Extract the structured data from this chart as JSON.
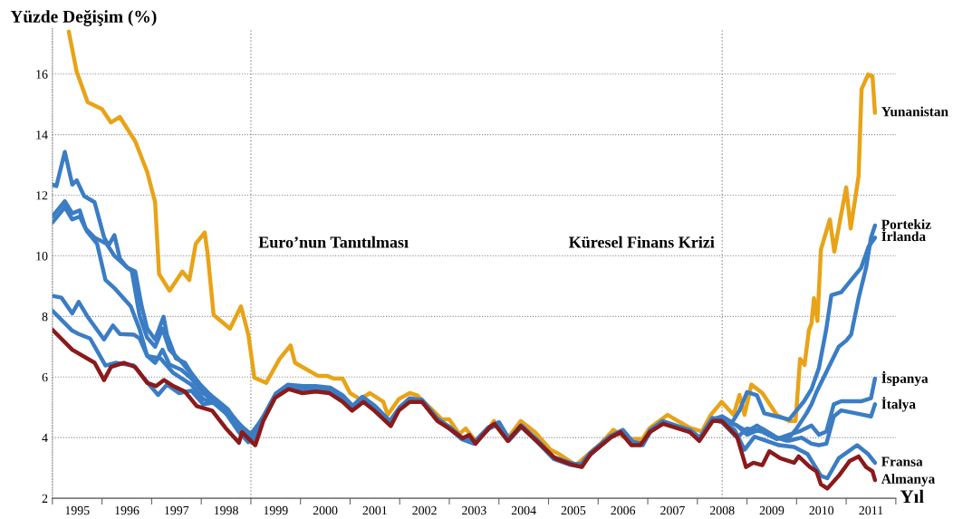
{
  "chart_data": {
    "type": "line",
    "ylabel": "Yüzde Değişim (%)",
    "xlabel": "Yıl",
    "xlim": [
      1995,
      2012
    ],
    "ylim": [
      2,
      17.5
    ],
    "xticks": [
      {
        "value": 1995,
        "label": null
      },
      {
        "value": 1996,
        "label": null
      },
      {
        "value": 1997,
        "label": null
      },
      {
        "value": 1998,
        "label": null
      },
      {
        "value": 1999,
        "label": null
      },
      {
        "value": 2000,
        "label": null
      },
      {
        "value": 2001,
        "label": null
      },
      {
        "value": 2002,
        "label": null
      },
      {
        "value": 2003,
        "label": null
      },
      {
        "value": 2004,
        "label": null
      },
      {
        "value": 2005,
        "label": null
      },
      {
        "value": 2006,
        "label": null
      },
      {
        "value": 2007,
        "label": null
      },
      {
        "value": 2008,
        "label": null
      },
      {
        "value": 2009,
        "label": null
      },
      {
        "value": 2010,
        "label": null
      },
      {
        "value": 2011,
        "label": null
      },
      {
        "value": 2012,
        "label": null
      },
      {
        "value": 1995.5,
        "label": "1995"
      },
      {
        "value": 1996.5,
        "label": "1996"
      },
      {
        "value": 1997.5,
        "label": "1997"
      },
      {
        "value": 1998.5,
        "label": "1998"
      },
      {
        "value": 1999.5,
        "label": "1999"
      },
      {
        "value": 2000.5,
        "label": "2000"
      },
      {
        "value": 2001.5,
        "label": "2001"
      },
      {
        "value": 2002.5,
        "label": "2002"
      },
      {
        "value": 2003.5,
        "label": "2003"
      },
      {
        "value": 2004.5,
        "label": "2004"
      },
      {
        "value": 2005.5,
        "label": "2005"
      },
      {
        "value": 2006.5,
        "label": "2006"
      },
      {
        "value": 2007.5,
        "label": "2007"
      },
      {
        "value": 2008.5,
        "label": "2008"
      },
      {
        "value": 2009.5,
        "label": "2009"
      },
      {
        "value": 2010.5,
        "label": "2010"
      },
      {
        "value": 2011.5,
        "label": "2011"
      }
    ],
    "yticks": [
      2,
      4,
      6,
      8,
      10,
      12,
      14,
      16
    ],
    "grid": "y",
    "legend": false,
    "marker": "none",
    "line_style": "solid",
    "ref_lines": [
      {
        "axis": "x",
        "value": 1999,
        "label": "Euro’nun Tanıtılması",
        "color": "#999999",
        "line_style": "dotted"
      },
      {
        "axis": "x",
        "value": 2008.5,
        "label": "Küresel Finans Krizi",
        "color": "#999999",
        "line_style": "dotted"
      }
    ],
    "series": [
      {
        "name": "Yunanistan",
        "color": "#e8a317",
        "x": [
          1995.33,
          1995.49,
          1995.71,
          1996.0,
          1996.18,
          1996.36,
          1996.67,
          1996.91,
          1997.07,
          1997.15,
          1997.36,
          1997.62,
          1997.76,
          1997.89,
          1998.07,
          1998.13,
          1998.25,
          1998.58,
          1998.8,
          1998.87,
          1998.95,
          1999.07,
          1999.31,
          1999.58,
          1999.8,
          1999.89,
          2000.04,
          2000.35,
          2000.53,
          2000.67,
          2000.85,
          2001.0,
          2001.2,
          2001.4,
          2001.67,
          2001.76,
          2001.98,
          2002.2,
          2002.35,
          2002.67,
          2002.85,
          2003.0,
          2003.2,
          2003.33,
          2003.53,
          2003.8,
          2003.9,
          2004.2,
          2004.44,
          2004.73,
          2005.04,
          2005.22,
          2005.55,
          2005.85,
          2006.05,
          2006.31,
          2006.58,
          2006.89,
          2007.04,
          2007.4,
          2007.85,
          2008.09,
          2008.27,
          2008.49,
          2008.73,
          2008.85,
          2008.95,
          2009.09,
          2009.31,
          2009.6,
          2009.85,
          2009.98,
          2010.07,
          2010.16,
          2010.25,
          2010.3,
          2010.35,
          2010.42,
          2010.49,
          2010.67,
          2010.76,
          2011.0,
          2011.09,
          2011.25,
          2011.31,
          2011.44,
          2011.53,
          2011.58
        ],
        "values": [
          17.4,
          16.07,
          15.07,
          14.84,
          14.4,
          14.58,
          13.78,
          12.77,
          11.77,
          9.4,
          8.85,
          9.48,
          9.2,
          10.4,
          10.77,
          10.05,
          8.05,
          7.6,
          8.33,
          7.9,
          7.39,
          5.98,
          5.81,
          6.6,
          7.04,
          6.47,
          6.33,
          6.04,
          6.04,
          5.95,
          5.95,
          5.47,
          5.27,
          5.47,
          5.18,
          4.75,
          5.27,
          5.47,
          5.4,
          4.9,
          4.6,
          4.6,
          4.12,
          4.3,
          3.89,
          4.32,
          4.55,
          4.03,
          4.55,
          4.18,
          3.6,
          3.45,
          3.09,
          3.52,
          3.8,
          4.26,
          3.95,
          3.95,
          4.32,
          4.75,
          4.32,
          4.2,
          4.75,
          5.18,
          4.75,
          5.41,
          4.75,
          5.75,
          5.47,
          4.75,
          4.55,
          4.55,
          6.6,
          6.4,
          7.56,
          7.76,
          8.6,
          7.85,
          10.2,
          11.2,
          10.14,
          12.26,
          10.9,
          12.63,
          15.5,
          15.98,
          15.93,
          14.72
        ]
      },
      {
        "name": "Portekiz",
        "color": "#3b7dc4",
        "x": [
          1995.0,
          1995.25,
          1995.4,
          1995.55,
          1995.7,
          1995.9,
          1996.07,
          1996.27,
          1996.58,
          1996.76,
          1996.91,
          1997.07,
          1997.22,
          1997.36,
          1997.6,
          1997.8,
          1998.04,
          1998.27,
          1998.53,
          1998.71,
          1999.0,
          1999.25,
          1999.5,
          1999.75,
          2000.05,
          2000.3,
          2000.6,
          2000.85,
          2001.05,
          2001.25,
          2001.5,
          2001.8,
          2002.0,
          2002.2,
          2002.45,
          2002.75,
          2003.0,
          2003.25,
          2003.5,
          2003.8,
          2004.0,
          2004.2,
          2004.45,
          2004.75,
          2005.1,
          2005.45,
          2005.65,
          2005.85,
          2006.25,
          2006.5,
          2006.7,
          2006.9,
          2007.05,
          2007.3,
          2007.85,
          2008.05,
          2008.3,
          2008.5,
          2008.8,
          2009.0,
          2009.2,
          2009.4,
          2009.6,
          2009.8,
          2010.0,
          2010.2,
          2010.3,
          2010.4,
          2010.55,
          2010.7,
          2010.85,
          2011.0,
          2011.1,
          2011.25,
          2011.4,
          2011.5,
          2011.58
        ],
        "values": [
          11.1,
          11.6,
          11.2,
          11.3,
          10.8,
          10.4,
          9.2,
          8.9,
          8.33,
          7.56,
          6.7,
          6.47,
          6.9,
          6.41,
          6.24,
          5.95,
          5.47,
          5.18,
          4.89,
          4.4,
          4.03,
          4.7,
          5.45,
          5.75,
          5.7,
          5.7,
          5.65,
          5.4,
          5.05,
          5.35,
          5.05,
          4.55,
          5.0,
          5.3,
          5.25,
          4.65,
          4.35,
          4.0,
          3.85,
          4.35,
          4.5,
          3.95,
          4.4,
          3.95,
          3.35,
          3.15,
          3.1,
          3.5,
          4.05,
          4.25,
          3.85,
          3.8,
          4.25,
          4.55,
          4.25,
          4.0,
          4.65,
          4.6,
          4.4,
          4.2,
          4.4,
          4.2,
          4.0,
          3.9,
          4.3,
          4.8,
          5.1,
          5.5,
          6.0,
          6.5,
          7.0,
          7.2,
          7.4,
          8.6,
          9.6,
          10.6,
          11.0
        ]
      },
      {
        "name": "İrlanda",
        "color": "#3b7dc4",
        "x": [
          1995.0,
          1995.18,
          1995.4,
          1995.53,
          1995.71,
          1996.04,
          1996.22,
          1996.36,
          1996.64,
          1996.76,
          1996.91,
          1997.18,
          1997.44,
          1997.8,
          1998.04,
          1998.27,
          1998.64,
          1999.0,
          1999.25,
          1999.5,
          1999.75,
          2000.05,
          2000.3,
          2000.6,
          2000.85,
          2001.05,
          2001.25,
          2001.5,
          2001.8,
          2002.0,
          2002.2,
          2002.45,
          2002.75,
          2003.0,
          2003.25,
          2003.5,
          2003.8,
          2004.0,
          2004.2,
          2004.45,
          2004.75,
          2005.1,
          2005.45,
          2005.65,
          2005.85,
          2006.25,
          2006.5,
          2006.7,
          2006.9,
          2007.05,
          2007.3,
          2007.85,
          2008.05,
          2008.3,
          2008.5,
          2008.7,
          2008.85,
          2009.0,
          2009.2,
          2009.35,
          2009.6,
          2009.85,
          2010.0,
          2010.15,
          2010.3,
          2010.45,
          2010.6,
          2010.7,
          2010.9,
          2011.1,
          2011.3,
          2011.45,
          2011.58
        ],
        "values": [
          8.68,
          8.62,
          8.1,
          8.48,
          7.99,
          7.24,
          7.7,
          7.42,
          7.4,
          7.27,
          6.7,
          6.61,
          6.13,
          5.75,
          5.27,
          5.12,
          4.6,
          4.12,
          4.65,
          5.4,
          5.7,
          5.65,
          5.65,
          5.6,
          5.35,
          5.0,
          5.3,
          5.0,
          4.5,
          4.95,
          5.25,
          5.2,
          4.6,
          4.3,
          3.95,
          3.8,
          4.3,
          4.45,
          3.9,
          4.35,
          3.9,
          3.3,
          3.1,
          3.05,
          3.45,
          4.0,
          4.2,
          3.8,
          3.75,
          4.2,
          4.5,
          4.2,
          3.95,
          4.6,
          4.7,
          4.5,
          4.9,
          5.5,
          5.4,
          4.8,
          4.7,
          4.6,
          4.9,
          5.2,
          5.6,
          6.3,
          7.6,
          8.7,
          8.8,
          9.2,
          9.6,
          10.3,
          10.6
        ]
      },
      {
        "name": "İspanya",
        "color": "#3b7dc4",
        "x": [
          1995.0,
          1995.25,
          1995.4,
          1995.55,
          1995.67,
          1995.85,
          1996.09,
          1996.25,
          1996.45,
          1996.6,
          1996.76,
          1996.91,
          1997.07,
          1997.22,
          1997.36,
          1997.6,
          1997.8,
          1998.04,
          1998.27,
          1998.53,
          1998.75,
          1999.0,
          1999.25,
          1999.5,
          1999.75,
          2000.05,
          2000.3,
          2000.6,
          2000.85,
          2001.05,
          2001.25,
          2001.5,
          2001.8,
          2002.0,
          2002.2,
          2002.45,
          2002.75,
          2003.0,
          2003.25,
          2003.5,
          2003.8,
          2004.0,
          2004.2,
          2004.45,
          2004.75,
          2005.1,
          2005.45,
          2005.65,
          2005.85,
          2006.25,
          2006.5,
          2006.7,
          2006.9,
          2007.05,
          2007.3,
          2007.85,
          2008.05,
          2008.3,
          2008.5,
          2008.8,
          2009.0,
          2009.3,
          2009.6,
          2009.85,
          2010.05,
          2010.3,
          2010.45,
          2010.6,
          2010.75,
          2010.9,
          2011.3,
          2011.5,
          2011.58
        ],
        "values": [
          11.3,
          11.8,
          11.4,
          11.5,
          10.9,
          10.6,
          10.4,
          10.0,
          9.7,
          9.5,
          8.0,
          7.3,
          7.0,
          7.6,
          6.9,
          6.5,
          6.1,
          5.6,
          5.3,
          4.95,
          4.45,
          4.0,
          4.6,
          5.35,
          5.7,
          5.6,
          5.65,
          5.55,
          5.3,
          4.95,
          5.25,
          4.95,
          4.45,
          4.95,
          5.25,
          5.2,
          4.6,
          4.35,
          4.0,
          3.85,
          4.35,
          4.5,
          3.95,
          4.4,
          3.95,
          3.35,
          3.15,
          3.1,
          3.5,
          4.05,
          4.2,
          3.8,
          3.8,
          4.2,
          4.5,
          4.2,
          3.95,
          4.6,
          4.5,
          4.0,
          4.3,
          4.2,
          3.95,
          4.1,
          4.2,
          4.4,
          4.1,
          4.2,
          5.1,
          5.2,
          5.2,
          5.3,
          5.95
        ]
      },
      {
        "name": "İtalya",
        "color": "#3b7dc4",
        "x": [
          1995.0,
          1995.08,
          1995.25,
          1995.4,
          1995.49,
          1995.64,
          1995.85,
          1996.04,
          1996.13,
          1996.25,
          1996.36,
          1996.5,
          1996.67,
          1996.8,
          1996.91,
          1997.07,
          1997.24,
          1997.31,
          1997.49,
          1997.67,
          1997.8,
          1997.98,
          1998.4,
          1998.76,
          1998.95,
          1999.25,
          1999.5,
          1999.75,
          2000.05,
          2000.3,
          2000.6,
          2000.85,
          2001.05,
          2001.25,
          2001.5,
          2001.8,
          2002.0,
          2002.2,
          2002.45,
          2002.75,
          2003.0,
          2003.25,
          2003.5,
          2003.8,
          2004.0,
          2004.2,
          2004.45,
          2004.75,
          2005.1,
          2005.45,
          2005.65,
          2005.85,
          2006.25,
          2006.5,
          2006.7,
          2006.9,
          2007.05,
          2007.3,
          2007.85,
          2008.05,
          2008.3,
          2008.5,
          2008.8,
          2009.0,
          2009.3,
          2009.6,
          2009.85,
          2010.1,
          2010.3,
          2010.45,
          2010.6,
          2010.75,
          2010.9,
          2011.2,
          2011.5,
          2011.58
        ],
        "values": [
          12.35,
          12.3,
          13.43,
          12.35,
          12.49,
          11.97,
          11.77,
          10.62,
          10.34,
          10.68,
          9.91,
          9.62,
          9.48,
          8.33,
          7.6,
          7.24,
          7.99,
          7.39,
          6.61,
          6.47,
          6.13,
          5.75,
          5.04,
          4.18,
          3.85,
          4.6,
          5.4,
          5.7,
          5.7,
          5.65,
          5.6,
          5.35,
          5.0,
          5.3,
          5.0,
          4.5,
          5.0,
          5.25,
          5.2,
          4.6,
          4.35,
          4.0,
          3.85,
          4.35,
          4.5,
          3.95,
          4.4,
          3.95,
          3.35,
          3.15,
          3.1,
          3.5,
          4.05,
          4.25,
          3.85,
          3.8,
          4.25,
          4.5,
          4.25,
          4.0,
          4.6,
          4.6,
          4.4,
          4.1,
          4.3,
          4.0,
          3.9,
          4.0,
          3.8,
          3.75,
          3.8,
          4.7,
          4.9,
          4.8,
          4.7,
          5.1
        ]
      },
      {
        "name": "Fransa",
        "color": "#3b7dc4",
        "x": [
          1995.0,
          1995.4,
          1995.53,
          1995.76,
          1996.07,
          1996.27,
          1996.64,
          1996.95,
          1997.13,
          1997.31,
          1997.55,
          1997.8,
          1998.04,
          1998.33,
          1998.64,
          1998.89,
          1999.07,
          1999.25,
          1999.5,
          1999.75,
          2000.05,
          2000.3,
          2000.6,
          2000.85,
          2001.05,
          2001.25,
          2001.5,
          2001.8,
          2002.0,
          2002.2,
          2002.45,
          2002.75,
          2003.0,
          2003.25,
          2003.5,
          2003.8,
          2004.0,
          2004.2,
          2004.45,
          2004.75,
          2005.1,
          2005.45,
          2005.65,
          2005.85,
          2006.25,
          2006.5,
          2006.7,
          2006.9,
          2007.05,
          2007.3,
          2007.85,
          2008.05,
          2008.3,
          2008.49,
          2008.75,
          2008.95,
          2009.15,
          2009.4,
          2009.65,
          2009.95,
          2010.22,
          2010.49,
          2010.62,
          2010.85,
          2011.22,
          2011.44,
          2011.58
        ],
        "values": [
          8.19,
          7.53,
          7.42,
          7.27,
          6.38,
          6.47,
          6.38,
          5.75,
          5.41,
          5.75,
          5.47,
          5.55,
          5.1,
          5.18,
          4.69,
          4.23,
          3.95,
          4.6,
          5.4,
          5.65,
          5.6,
          5.6,
          5.55,
          5.3,
          4.95,
          5.25,
          4.95,
          4.45,
          4.95,
          5.25,
          5.2,
          4.6,
          4.35,
          4.0,
          3.85,
          4.3,
          4.5,
          3.95,
          4.4,
          3.9,
          3.35,
          3.15,
          3.05,
          3.5,
          4.05,
          4.2,
          3.8,
          3.8,
          4.2,
          4.5,
          4.2,
          3.95,
          4.6,
          4.55,
          4.26,
          3.6,
          4.03,
          3.89,
          3.75,
          3.69,
          3.46,
          2.74,
          2.66,
          3.32,
          3.75,
          3.46,
          3.17
        ]
      },
      {
        "name": "Almanya",
        "color": "#8b1a1a",
        "x": [
          1995.0,
          1995.4,
          1995.85,
          1996.04,
          1996.18,
          1996.44,
          1996.67,
          1996.91,
          1997.09,
          1997.25,
          1997.44,
          1997.67,
          1997.91,
          1998.22,
          1998.49,
          1998.76,
          1998.82,
          1999.09,
          1999.25,
          1999.49,
          1999.76,
          2000.04,
          2000.31,
          2000.58,
          2000.85,
          2001.04,
          2001.27,
          2001.49,
          2001.82,
          2001.98,
          2002.2,
          2002.45,
          2002.76,
          2002.98,
          2003.27,
          2003.4,
          2003.53,
          2003.8,
          2003.91,
          2004.18,
          2004.44,
          2004.76,
          2005.13,
          2005.45,
          2005.67,
          2005.85,
          2006.27,
          2006.45,
          2006.67,
          2006.85,
          2007.04,
          2007.31,
          2007.85,
          2008.04,
          2008.31,
          2008.49,
          2008.8,
          2008.98,
          2009.13,
          2009.31,
          2009.45,
          2009.67,
          2009.95,
          2010.04,
          2010.27,
          2010.4,
          2010.49,
          2010.62,
          2010.85,
          2011.07,
          2011.25,
          2011.4,
          2011.53,
          2011.58
        ],
        "values": [
          7.56,
          6.9,
          6.47,
          5.9,
          6.33,
          6.47,
          6.33,
          5.81,
          5.7,
          5.9,
          5.7,
          5.52,
          5.04,
          4.89,
          4.32,
          3.83,
          4.18,
          3.75,
          4.55,
          5.32,
          5.6,
          5.47,
          5.52,
          5.47,
          5.18,
          4.89,
          5.18,
          4.89,
          4.38,
          4.89,
          5.18,
          5.18,
          4.55,
          4.32,
          3.98,
          4.09,
          3.8,
          4.32,
          4.46,
          3.89,
          4.38,
          3.89,
          3.32,
          3.12,
          3.03,
          3.46,
          4.03,
          4.18,
          3.75,
          3.75,
          4.18,
          4.46,
          4.18,
          3.89,
          4.55,
          4.55,
          4.03,
          3.03,
          3.17,
          3.09,
          3.55,
          3.32,
          3.17,
          3.38,
          3.03,
          2.89,
          2.46,
          2.32,
          2.74,
          3.23,
          3.38,
          3.03,
          2.89,
          2.6
        ]
      }
    ]
  }
}
